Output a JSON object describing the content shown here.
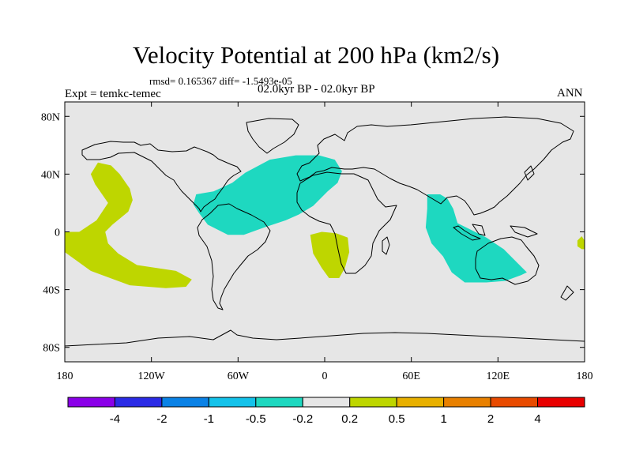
{
  "title": "Velocity Potential at 200 hPa (km2/s)",
  "stats_line": "rmsd= 0.165367  diff= -1.5493e-05",
  "experiment_label": "Expt = temkc-temec",
  "period_label": "02.0kyr BP - 02.0kyr BP",
  "season_label": "ANN",
  "map": {
    "background_color": "#e6e6e6",
    "coast_color": "#000000",
    "lat_ticks": [
      {
        "value": 80,
        "label": "80N"
      },
      {
        "value": 40,
        "label": "40N"
      },
      {
        "value": 0,
        "label": "0"
      },
      {
        "value": -40,
        "label": "40S"
      },
      {
        "value": -80,
        "label": "80S"
      }
    ],
    "lon_ticks": [
      {
        "value": -180,
        "label": "180"
      },
      {
        "value": -120,
        "label": "120W"
      },
      {
        "value": -60,
        "label": "60W"
      },
      {
        "value": 0,
        "label": "0"
      },
      {
        "value": 60,
        "label": "60E"
      },
      {
        "value": 120,
        "label": "120E"
      },
      {
        "value": 180,
        "label": "180"
      }
    ],
    "anomaly_regions": [
      {
        "name": "east-pacific-positive",
        "class": "0.2 to 0.5",
        "color": "#bed600",
        "outline": [
          [
            -157,
            48
          ],
          [
            -148,
            46
          ],
          [
            -142,
            40
          ],
          [
            -135,
            30
          ],
          [
            -133,
            22
          ],
          [
            -136,
            14
          ],
          [
            -147,
            5
          ],
          [
            -152,
            0
          ],
          [
            -150,
            -8
          ],
          [
            -143,
            -15
          ],
          [
            -130,
            -23
          ],
          [
            -103,
            -27
          ],
          [
            -92,
            -33
          ],
          [
            -96,
            -38
          ],
          [
            -110,
            -39
          ],
          [
            -135,
            -37
          ],
          [
            -162,
            -27
          ],
          [
            -180,
            -14
          ],
          [
            -180,
            0
          ],
          [
            -170,
            0
          ],
          [
            -158,
            8
          ],
          [
            -150,
            20
          ],
          [
            -159,
            33
          ],
          [
            -162,
            40
          ]
        ]
      },
      {
        "name": "atlantic-negative",
        "class": "-0.5 to -0.2",
        "color": "#1ed8c0",
        "outline": [
          [
            -89,
            26
          ],
          [
            -77,
            28
          ],
          [
            -64,
            34
          ],
          [
            -55,
            41
          ],
          [
            -38,
            50
          ],
          [
            -20,
            53
          ],
          [
            -4,
            53
          ],
          [
            7,
            50
          ],
          [
            12,
            42
          ],
          [
            9,
            34
          ],
          [
            2,
            28
          ],
          [
            -8,
            18
          ],
          [
            -18,
            12
          ],
          [
            -27,
            8
          ],
          [
            -42,
            3
          ],
          [
            -56,
            -2
          ],
          [
            -67,
            -2
          ],
          [
            -81,
            5
          ],
          [
            -87,
            13
          ],
          [
            -91,
            19
          ]
        ]
      },
      {
        "name": "south-atlantic-positive",
        "class": "0.2 to 0.5",
        "color": "#bed600",
        "outline": [
          [
            -10,
            -2
          ],
          [
            -2,
            0
          ],
          [
            8,
            -1
          ],
          [
            16,
            -4
          ],
          [
            17,
            -14
          ],
          [
            14,
            -25
          ],
          [
            10,
            -32
          ],
          [
            3,
            -32
          ],
          [
            -2,
            -25
          ],
          [
            -8,
            -15
          ]
        ]
      },
      {
        "name": "indian-ocean-negative",
        "class": "-0.5 to -0.2",
        "color": "#1ed8c0",
        "outline": [
          [
            71,
            26
          ],
          [
            80,
            26
          ],
          [
            85,
            23
          ],
          [
            89,
            16
          ],
          [
            92,
            6
          ],
          [
            100,
            2
          ],
          [
            112,
            -4
          ],
          [
            124,
            -12
          ],
          [
            134,
            -22
          ],
          [
            140,
            -28
          ],
          [
            136,
            -30
          ],
          [
            125,
            -34
          ],
          [
            112,
            -35
          ],
          [
            97,
            -35
          ],
          [
            88,
            -28
          ],
          [
            82,
            -17
          ],
          [
            74,
            -8
          ],
          [
            70,
            3
          ],
          [
            71,
            16
          ]
        ]
      },
      {
        "name": "west-pacific-positive-edge",
        "class": "0.2 to 0.5",
        "color": "#bed600",
        "outline": [
          [
            180,
            -6
          ],
          [
            178,
            -3
          ],
          [
            175,
            -6
          ],
          [
            175,
            -10
          ],
          [
            178,
            -12
          ],
          [
            180,
            -12
          ]
        ]
      }
    ]
  },
  "colorbar": {
    "colors": [
      "#8a00e8",
      "#2b2be6",
      "#0a82e6",
      "#14c2ea",
      "#1ed8c0",
      "#e6e6e6",
      "#bed600",
      "#e8b000",
      "#e88000",
      "#e84a00",
      "#e80000"
    ],
    "labels": [
      "-4",
      "-2",
      "-1",
      "-0.5",
      "-0.2",
      "0.2",
      "0.5",
      "1",
      "2",
      "4"
    ]
  }
}
